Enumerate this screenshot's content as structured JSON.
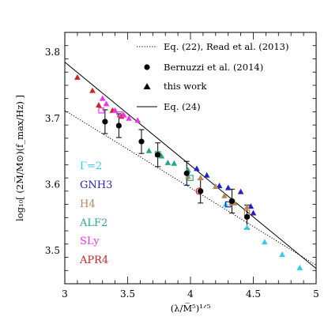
{
  "chart_data": {
    "type": "scatter",
    "xlabel": "(λ/M̅⁵)¹ᐟ⁵",
    "ylabel": "log₁₀[ (2M̅/M⊙)(f_max/Hz) ]",
    "xlim": [
      3,
      5
    ],
    "ylim": [
      3.45,
      3.83
    ],
    "x_ticks": [
      3,
      3.5,
      4,
      4.5,
      5
    ],
    "y_ticks": [
      3.5,
      3.6,
      3.7,
      3.8
    ],
    "x_tick_labels": [
      "3",
      "3.5",
      "4",
      "4.5",
      "5"
    ],
    "y_tick_labels": [
      "3.5",
      "3.6",
      "3.7",
      "3.8"
    ],
    "legend": [
      {
        "text": "Eq. (22), Read et al. (2013)",
        "marker": "dotted-line"
      },
      {
        "text": "Bernuzzi et al. (2014)",
        "marker": "circle"
      },
      {
        "text": "this work",
        "marker": "triangle"
      },
      {
        "text": "Eq. (24)",
        "marker": "solid-line"
      }
    ],
    "eos_labels": [
      {
        "text": "Γ=2",
        "color": "#33ccee"
      },
      {
        "text": "GNH3",
        "color": "#2222cc"
      },
      {
        "text": "H4",
        "color": "#bb8855"
      },
      {
        "text": "ALF2",
        "color": "#22aa88"
      },
      {
        "text": "SLy",
        "color": "#ee33ee"
      },
      {
        "text": "APR4",
        "color": "#cc2222"
      }
    ],
    "lines": [
      {
        "name": "Eq. (24)",
        "style": "solid",
        "points": [
          [
            3,
            3.785
          ],
          [
            5,
            3.473
          ]
        ]
      },
      {
        "name": "Eq. (22)",
        "style": "dotted",
        "points": [
          [
            3,
            3.712
          ],
          [
            5,
            3.478
          ]
        ]
      }
    ],
    "bernuzzi": [
      {
        "x": 3.32,
        "y": 3.695,
        "err": 0.018
      },
      {
        "x": 3.43,
        "y": 3.689,
        "err": 0.018
      },
      {
        "x": 3.61,
        "y": 3.665,
        "err": 0.018
      },
      {
        "x": 3.74,
        "y": 3.645,
        "err": 0.018
      },
      {
        "x": 3.97,
        "y": 3.617,
        "err": 0.018
      },
      {
        "x": 4.08,
        "y": 3.59,
        "err": 0.018
      },
      {
        "x": 4.33,
        "y": 3.575,
        "err": 0.018
      },
      {
        "x": 4.45,
        "y": 3.551,
        "err": 0.018
      }
    ],
    "triangles": [
      {
        "eos": "APR4",
        "points": [
          [
            3.1,
            3.762
          ],
          [
            3.22,
            3.742
          ],
          [
            3.27,
            3.72
          ],
          [
            3.38,
            3.712
          ],
          [
            3.45,
            3.703
          ]
        ]
      },
      {
        "eos": "SLy",
        "points": [
          [
            3.3,
            3.73
          ],
          [
            3.33,
            3.722
          ],
          [
            3.4,
            3.712
          ],
          [
            3.47,
            3.705
          ],
          [
            3.51,
            3.7
          ],
          [
            3.58,
            3.697
          ]
        ]
      },
      {
        "eos": "ALF2",
        "points": [
          [
            3.67,
            3.651
          ],
          [
            3.77,
            3.643
          ],
          [
            3.82,
            3.633
          ],
          [
            3.87,
            3.632
          ],
          [
            3.98,
            3.622
          ]
        ]
      },
      {
        "eos": "GNH3",
        "points": [
          [
            4.05,
            3.624
          ],
          [
            4.13,
            3.614
          ],
          [
            4.23,
            3.598
          ],
          [
            4.3,
            3.595
          ],
          [
            4.4,
            3.589
          ],
          [
            4.48,
            3.567
          ],
          [
            4.5,
            3.557
          ]
        ]
      },
      {
        "eos": "H4",
        "points": [
          [
            3.98,
            3.612
          ],
          [
            4.08,
            3.61
          ],
          [
            4.2,
            3.597
          ],
          [
            4.27,
            3.583
          ],
          [
            4.35,
            3.572
          ],
          [
            4.45,
            3.566
          ]
        ]
      },
      {
        "eos": "Γ=2",
        "points": [
          [
            4.28,
            3.57
          ],
          [
            4.45,
            3.535
          ],
          [
            4.59,
            3.513
          ],
          [
            4.73,
            3.494
          ],
          [
            4.87,
            3.474
          ]
        ]
      }
    ],
    "squares": [
      {
        "eos": "SLy",
        "x": 3.29,
        "y": 3.712
      },
      {
        "eos": "SLy",
        "x": 3.44,
        "y": 3.706
      },
      {
        "eos": "ALF2",
        "x": 3.74,
        "y": 3.646
      },
      {
        "eos": "GNH3",
        "x": 4.3,
        "y": 3.57
      },
      {
        "eos": "H4",
        "x": 4.33,
        "y": 3.573
      },
      {
        "eos": "H4",
        "x": 4.45,
        "y": 3.557
      },
      {
        "eos": "ALF2",
        "x": 4.0,
        "y": 3.61
      }
    ],
    "open_circle": {
      "eos": "APR4",
      "x": 4.07,
      "y": 3.59
    }
  }
}
